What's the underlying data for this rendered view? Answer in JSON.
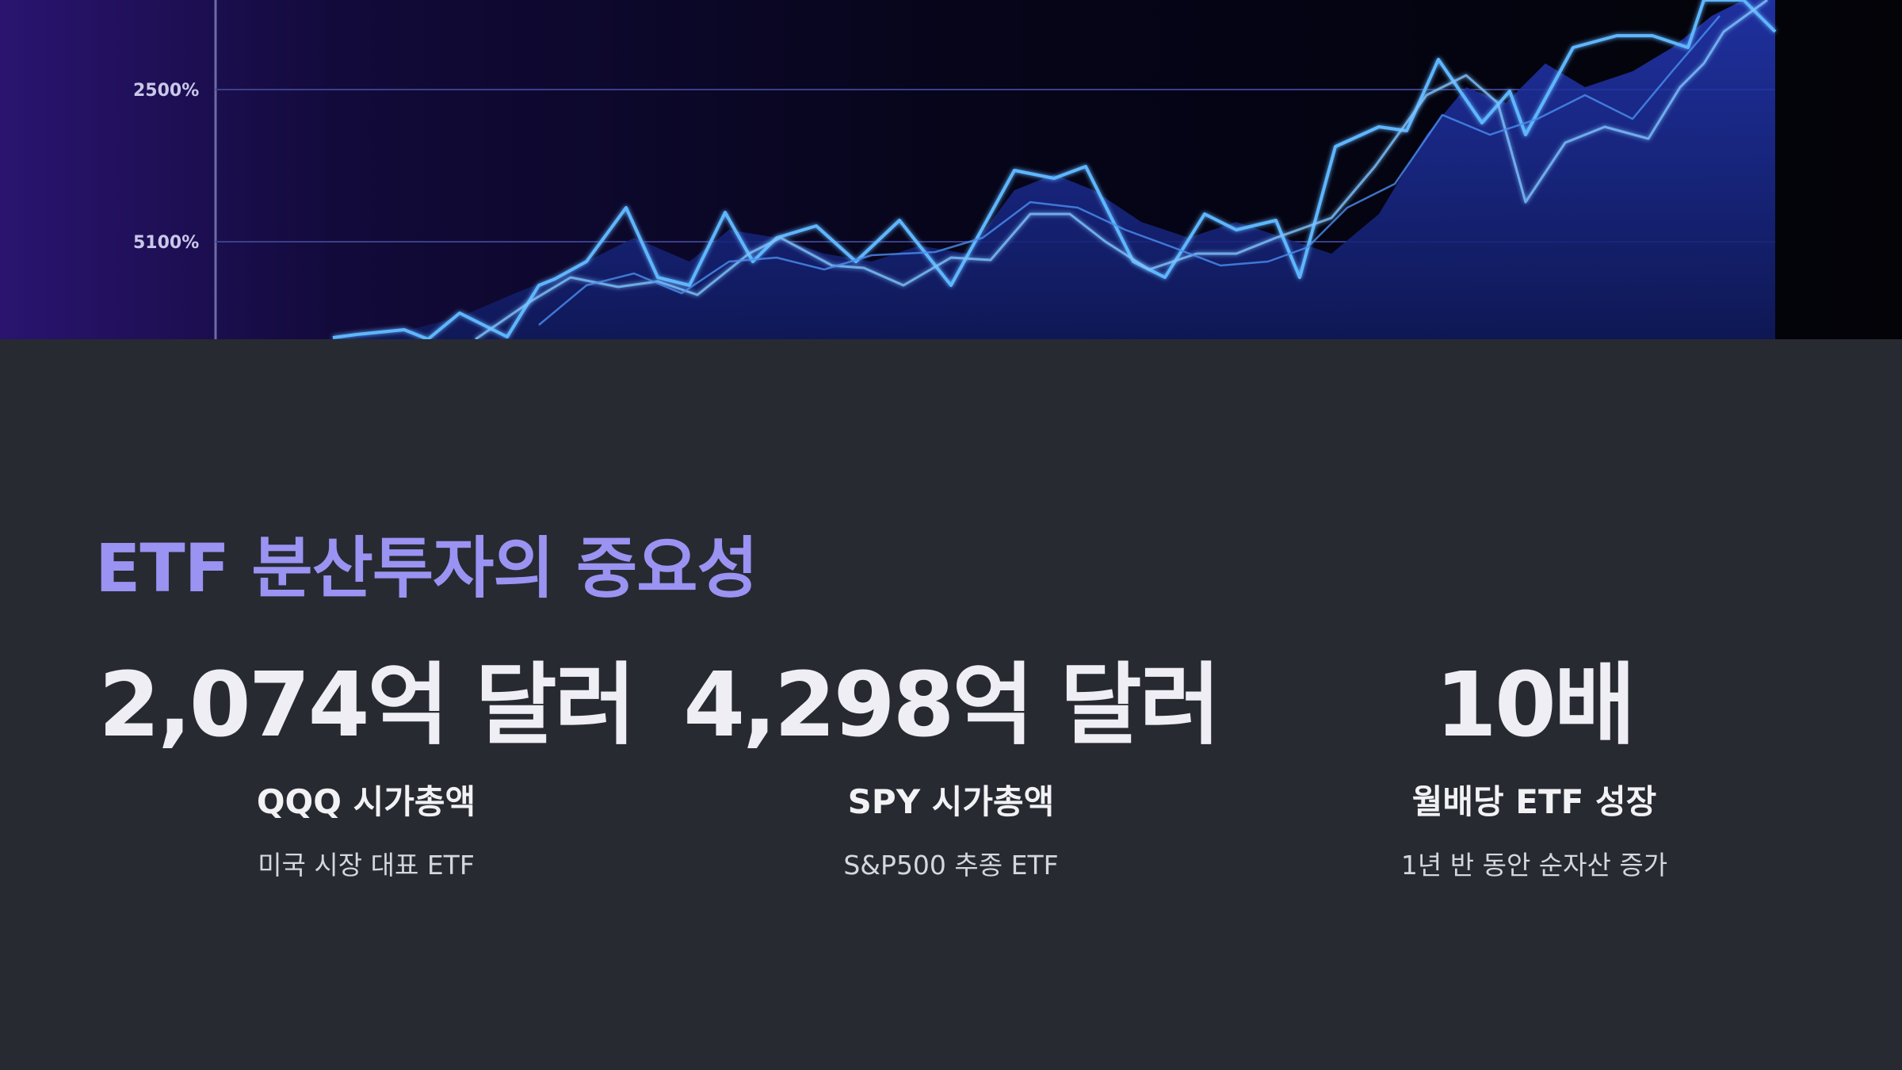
{
  "hero": {
    "axis_labels": [
      "2500%",
      "5100%"
    ],
    "colors": {
      "bg_dark": "#04030f",
      "bg_purple": "#2a1470",
      "line": "#5fb6ff",
      "fill": "#1a2a8a",
      "grid": "#3a3f8a"
    }
  },
  "section": {
    "title": "ETF 분산투자의 중요성",
    "stats": [
      {
        "value": "2,074억 달러",
        "label": "QQQ 시가총액",
        "desc": "미국 시장 대표 ETF"
      },
      {
        "value": "4,298억 달러",
        "label": "SPY 시가총액",
        "desc": "S&P500 추종 ETF"
      },
      {
        "value": "10배",
        "label": "월배당 ETF 성장",
        "desc": "1년 반 동안 순자산 증가"
      }
    ]
  },
  "colors": {
    "page_bg": "#272a31",
    "title": "#9a93f2",
    "stat_value": "#eeeef4",
    "stat_label": "#f2f2f5",
    "stat_desc": "#d6d7dd"
  }
}
